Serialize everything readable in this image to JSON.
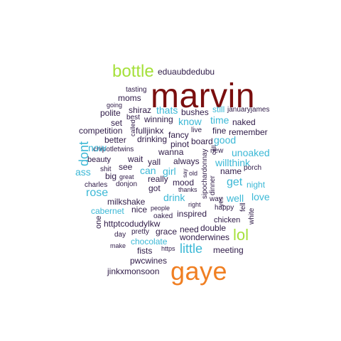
{
  "palette": {
    "dark": "#2e1a47",
    "blue": "#3bb8d6",
    "green": "#a5e03a",
    "orange": "#f07f22",
    "maroon": "#7a0e0e"
  },
  "words": [
    {
      "text": "marvin",
      "color": "maroon"
    },
    {
      "text": "gaye",
      "color": "orange"
    },
    {
      "text": "bottle",
      "color": "green"
    },
    {
      "text": "lol",
      "color": "green"
    },
    {
      "text": "eduaubdedubu",
      "color": "dark"
    },
    {
      "text": "tasting",
      "color": "dark"
    },
    {
      "text": "moms",
      "color": "dark"
    },
    {
      "text": "going",
      "color": "dark"
    },
    {
      "text": "polite",
      "color": "dark"
    },
    {
      "text": "shiraz",
      "color": "dark"
    },
    {
      "text": "thats",
      "color": "blue"
    },
    {
      "text": "bushes",
      "color": "dark"
    },
    {
      "text": "still",
      "color": "blue"
    },
    {
      "text": "januaryjames",
      "color": "dark"
    },
    {
      "text": "best",
      "color": "dark"
    },
    {
      "text": "winning",
      "color": "dark"
    },
    {
      "text": "know",
      "color": "blue"
    },
    {
      "text": "time",
      "color": "blue"
    },
    {
      "text": "set",
      "color": "dark"
    },
    {
      "text": "naked",
      "color": "dark"
    },
    {
      "text": "competition",
      "color": "dark"
    },
    {
      "text": "called",
      "color": "dark"
    },
    {
      "text": "fulljinkx",
      "color": "dark"
    },
    {
      "text": "live",
      "color": "dark"
    },
    {
      "text": "fine",
      "color": "dark"
    },
    {
      "text": "remember",
      "color": "dark"
    },
    {
      "text": "better",
      "color": "dark"
    },
    {
      "text": "drinking",
      "color": "dark"
    },
    {
      "text": "fancy",
      "color": "dark"
    },
    {
      "text": "board",
      "color": "dark"
    },
    {
      "text": "good",
      "color": "blue"
    },
    {
      "text": "dont",
      "color": "blue"
    },
    {
      "text": "pinot",
      "color": "dark"
    },
    {
      "text": "call",
      "color": "dark"
    },
    {
      "text": "chipotletwins",
      "color": "dark"
    },
    {
      "text": "wanna",
      "color": "dark"
    },
    {
      "text": "new",
      "color": "dark"
    },
    {
      "text": "unoaked",
      "color": "blue"
    },
    {
      "text": "now",
      "color": "blue"
    },
    {
      "text": "beauty",
      "color": "dark"
    },
    {
      "text": "wait",
      "color": "dark"
    },
    {
      "text": "yall",
      "color": "dark"
    },
    {
      "text": "always",
      "color": "dark"
    },
    {
      "text": "willthink",
      "color": "blue"
    },
    {
      "text": "shit",
      "color": "dark"
    },
    {
      "text": "see",
      "color": "dark"
    },
    {
      "text": "can",
      "color": "blue"
    },
    {
      "text": "girl",
      "color": "blue"
    },
    {
      "text": "sipochardonnay",
      "color": "dark"
    },
    {
      "text": "porch",
      "color": "dark"
    },
    {
      "text": "name",
      "color": "dark"
    },
    {
      "text": "ass",
      "color": "blue"
    },
    {
      "text": "big",
      "color": "dark"
    },
    {
      "text": "great",
      "color": "dark"
    },
    {
      "text": "really",
      "color": "dark"
    },
    {
      "text": "say",
      "color": "dark"
    },
    {
      "text": "old",
      "color": "dark"
    },
    {
      "text": "get",
      "color": "blue"
    },
    {
      "text": "night",
      "color": "blue"
    },
    {
      "text": "charles",
      "color": "dark"
    },
    {
      "text": "donjon",
      "color": "dark"
    },
    {
      "text": "got",
      "color": "dark"
    },
    {
      "text": "mood",
      "color": "dark"
    },
    {
      "text": "dinner",
      "color": "dark"
    },
    {
      "text": "rose",
      "color": "blue"
    },
    {
      "text": "drink",
      "color": "blue"
    },
    {
      "text": "thanks",
      "color": "dark"
    },
    {
      "text": "yes",
      "color": "dark"
    },
    {
      "text": "well",
      "color": "blue"
    },
    {
      "text": "love",
      "color": "blue"
    },
    {
      "text": "milkshake",
      "color": "dark"
    },
    {
      "text": "way",
      "color": "dark"
    },
    {
      "text": "right",
      "color": "dark"
    },
    {
      "text": "happy",
      "color": "dark"
    },
    {
      "text": "fell",
      "color": "dark"
    },
    {
      "text": "cabernet",
      "color": "blue"
    },
    {
      "text": "nice",
      "color": "dark"
    },
    {
      "text": "people",
      "color": "dark"
    },
    {
      "text": "inspired",
      "color": "dark"
    },
    {
      "text": "white",
      "color": "dark"
    },
    {
      "text": "one",
      "color": "dark"
    },
    {
      "text": "oaked",
      "color": "dark"
    },
    {
      "text": "chicken",
      "color": "dark"
    },
    {
      "text": "httptcodudylkw",
      "color": "dark"
    },
    {
      "text": "need",
      "color": "dark"
    },
    {
      "text": "double",
      "color": "dark"
    },
    {
      "text": "day",
      "color": "dark"
    },
    {
      "text": "pretty",
      "color": "dark"
    },
    {
      "text": "grace",
      "color": "dark"
    },
    {
      "text": "wonderwines",
      "color": "dark"
    },
    {
      "text": "chocolate",
      "color": "blue"
    },
    {
      "text": "make",
      "color": "dark"
    },
    {
      "text": "little",
      "color": "blue"
    },
    {
      "text": "fists",
      "color": "dark"
    },
    {
      "text": "https",
      "color": "dark"
    },
    {
      "text": "meeting",
      "color": "dark"
    },
    {
      "text": "pwcwines",
      "color": "dark"
    },
    {
      "text": "jinkxmonsoon",
      "color": "dark"
    }
  ]
}
